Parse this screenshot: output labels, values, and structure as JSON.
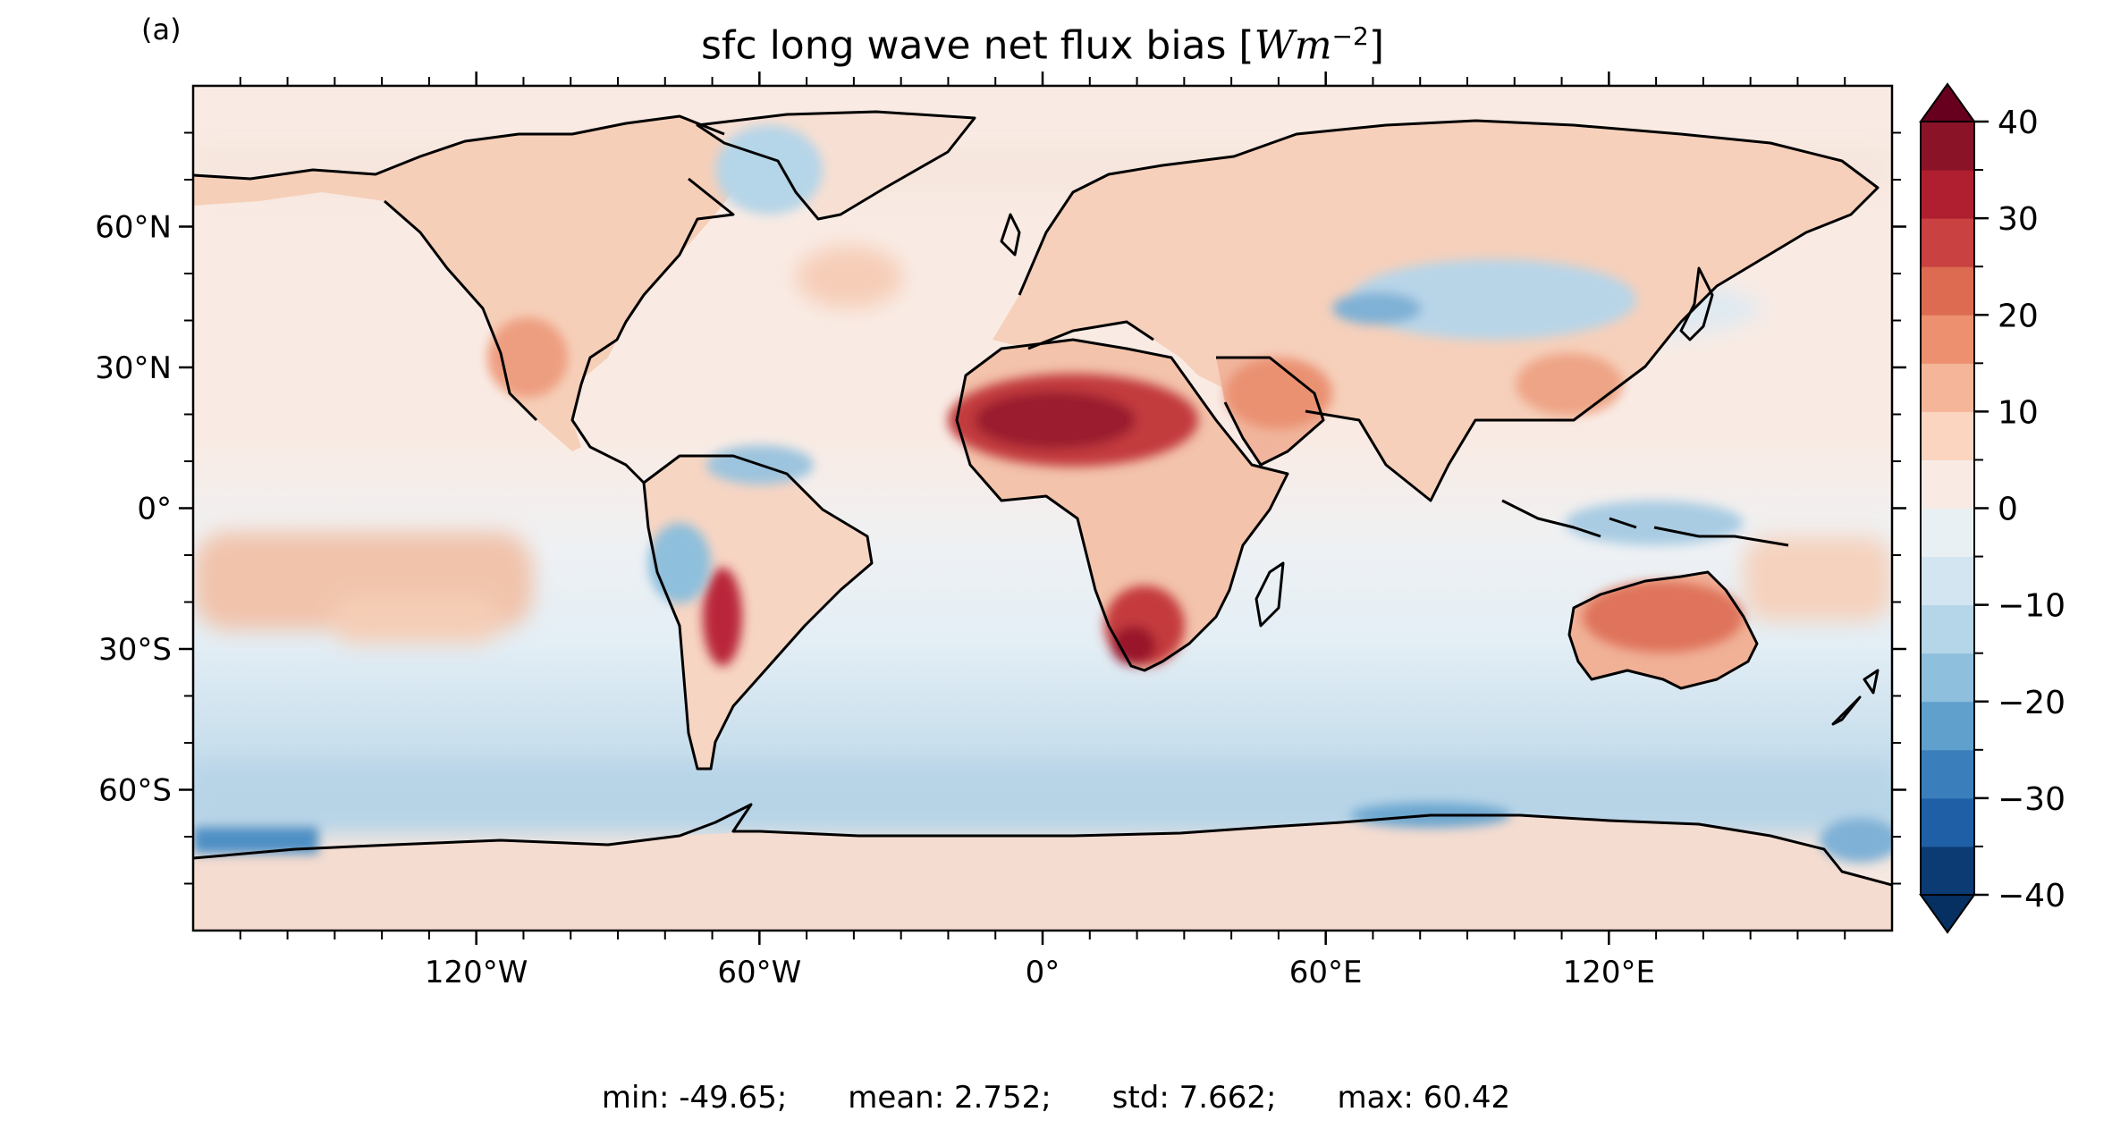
{
  "panel_label": "(a)",
  "title_prefix": "sfc long wave net flux bias ",
  "title_unit_open": "[",
  "title_unit_var": "Wm",
  "title_unit_exp": "−2",
  "title_unit_close": "]",
  "map": {
    "type": "heatmap",
    "projection": "PlateCarree",
    "lon_range": [
      -180,
      180
    ],
    "lat_range": [
      -90,
      90
    ],
    "lat_ticks": [
      {
        "value": 60,
        "label": "60°N"
      },
      {
        "value": 30,
        "label": "30°N"
      },
      {
        "value": 0,
        "label": "0°"
      },
      {
        "value": -30,
        "label": "30°S"
      },
      {
        "value": -60,
        "label": "60°S"
      }
    ],
    "lon_ticks": [
      {
        "value": -120,
        "label": "120°W"
      },
      {
        "value": -60,
        "label": "60°W"
      },
      {
        "value": 0,
        "label": "0°"
      },
      {
        "value": 60,
        "label": "60°E"
      },
      {
        "value": 120,
        "label": "120°E"
      }
    ],
    "coastlines": true,
    "colormap": "RdBu_r",
    "extend": "both"
  },
  "colorbar": {
    "vmin": -40,
    "vmax": 40,
    "step": 5,
    "ticks": [
      {
        "value": 40,
        "label": "40"
      },
      {
        "value": 30,
        "label": "30"
      },
      {
        "value": 20,
        "label": "20"
      },
      {
        "value": 10,
        "label": "10"
      },
      {
        "value": 0,
        "label": "0"
      },
      {
        "value": -10,
        "label": "−10"
      },
      {
        "value": -20,
        "label": "−20"
      },
      {
        "value": -30,
        "label": "−30"
      },
      {
        "value": -40,
        "label": "−40"
      }
    ],
    "colors": [
      "#0c3b73",
      "#1f5fa6",
      "#3a7fbb",
      "#5fa0cc",
      "#8ebfdc",
      "#b5d5e8",
      "#d2e5f0",
      "#e9f0f4",
      "#f9ebe4",
      "#fbd5c0",
      "#f5b598",
      "#ec9070",
      "#dc6b52",
      "#c94140",
      "#b01f2f",
      "#8a1327"
    ],
    "over_color": "#67001f",
    "under_color": "#053061"
  },
  "stats": {
    "min": "min: -49.65;",
    "mean": "mean: 2.752;",
    "std": "std: 7.662;",
    "max": "max: 60.42"
  }
}
